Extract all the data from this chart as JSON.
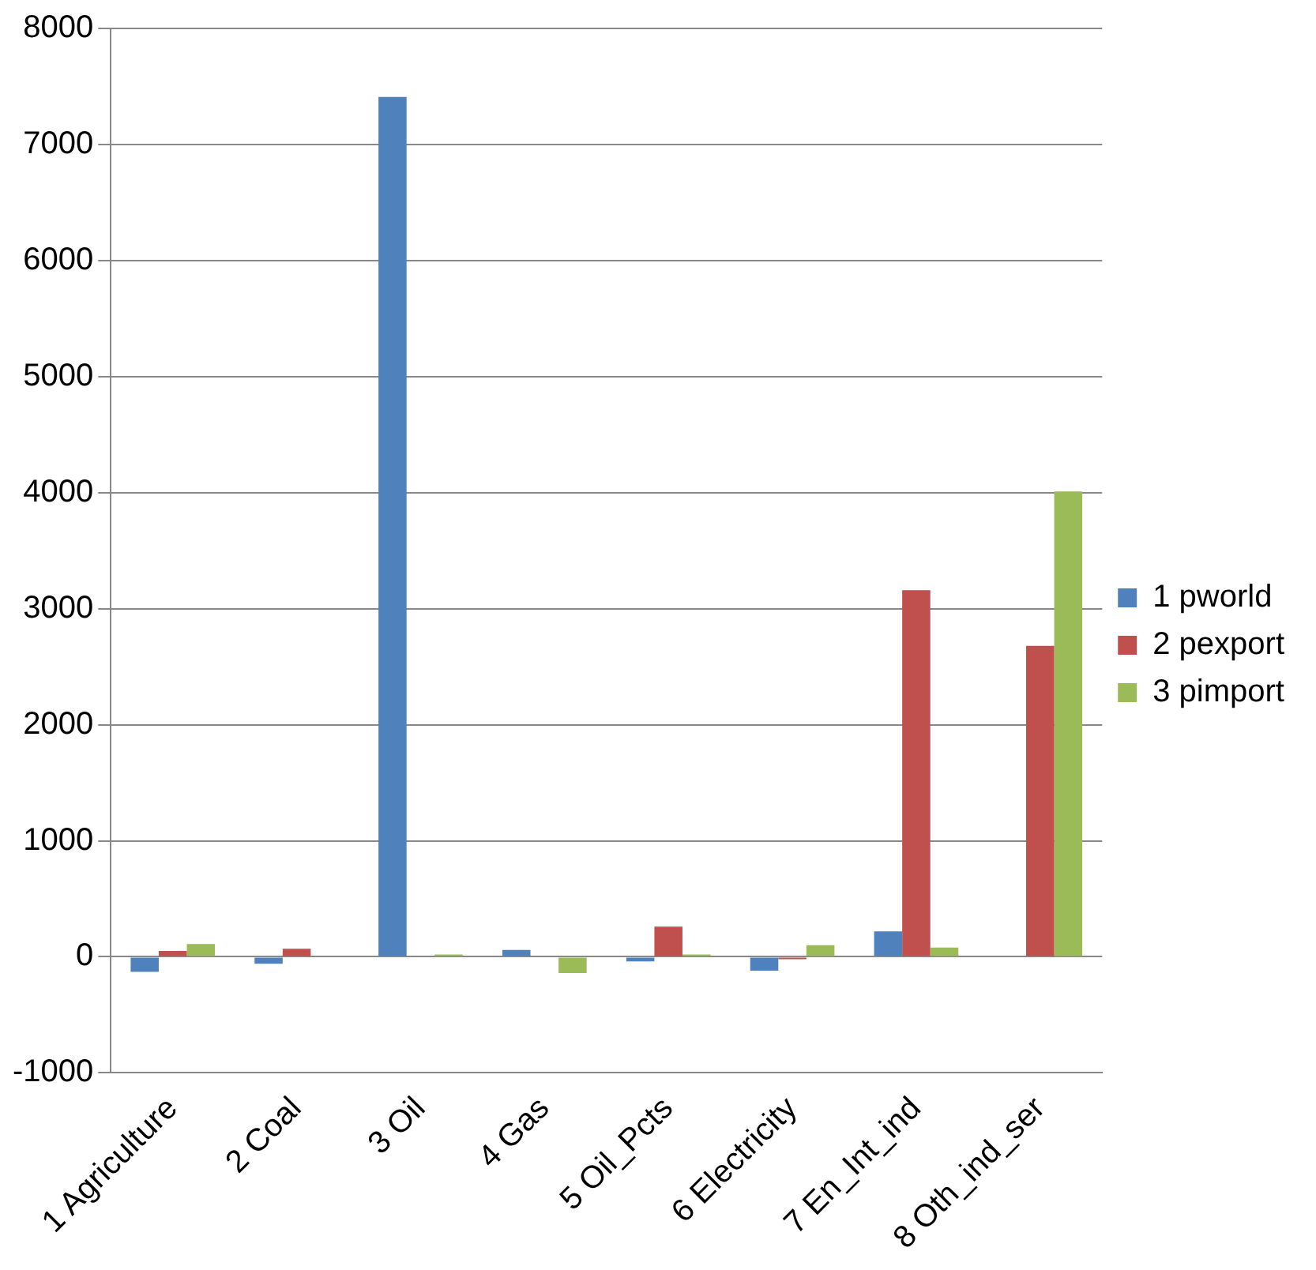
{
  "chart_data": {
    "type": "bar",
    "categories": [
      "1 Agriculture",
      "2 Coal",
      "3 Oil",
      "4 Gas",
      "5 Oil_Pcts",
      "6 Electricity",
      "7 En_Int_ind",
      "8 Oth_ind_ser"
    ],
    "series": [
      {
        "name": "1 pworld",
        "color": "#4f81bd",
        "values": [
          -130,
          -60,
          7410,
          60,
          -40,
          -120,
          220,
          0
        ]
      },
      {
        "name": "2 pexport",
        "color": "#c0504d",
        "values": [
          50,
          70,
          0,
          0,
          260,
          -20,
          3160,
          2680
        ]
      },
      {
        "name": "3 pimport",
        "color": "#9bbb59",
        "values": [
          110,
          0,
          20,
          -140,
          20,
          100,
          80,
          4010
        ]
      }
    ],
    "ylim": [
      -1000,
      8000
    ],
    "yticks": [
      -1000,
      0,
      1000,
      2000,
      3000,
      4000,
      5000,
      6000,
      7000,
      8000
    ],
    "grid": "y",
    "legend": "right"
  }
}
